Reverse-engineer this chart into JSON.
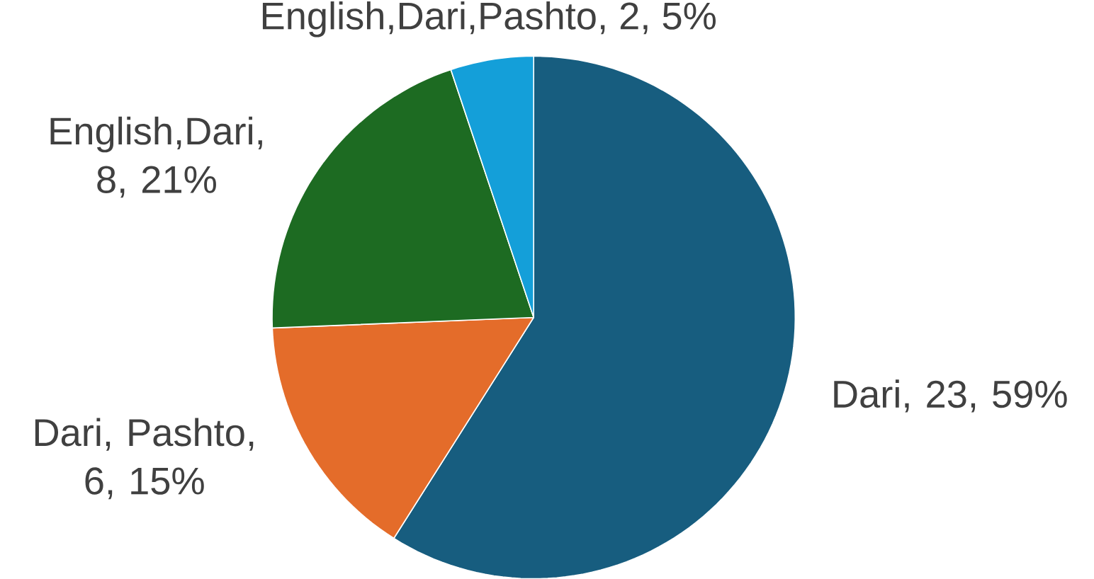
{
  "chart_data": {
    "type": "pie",
    "categories": [
      "Dari",
      "Dari, Pashto",
      "English,Dari",
      "English,Dari,Pashto"
    ],
    "values": [
      23,
      6,
      8,
      2
    ],
    "value_labels": [
      ", 23, 59%",
      ", 6, 15%",
      ", 8, 21%",
      ", 2, 5%"
    ],
    "colors": [
      "#175d7f",
      "#e46c2a",
      "#1d6b22",
      "#149fd9"
    ]
  }
}
